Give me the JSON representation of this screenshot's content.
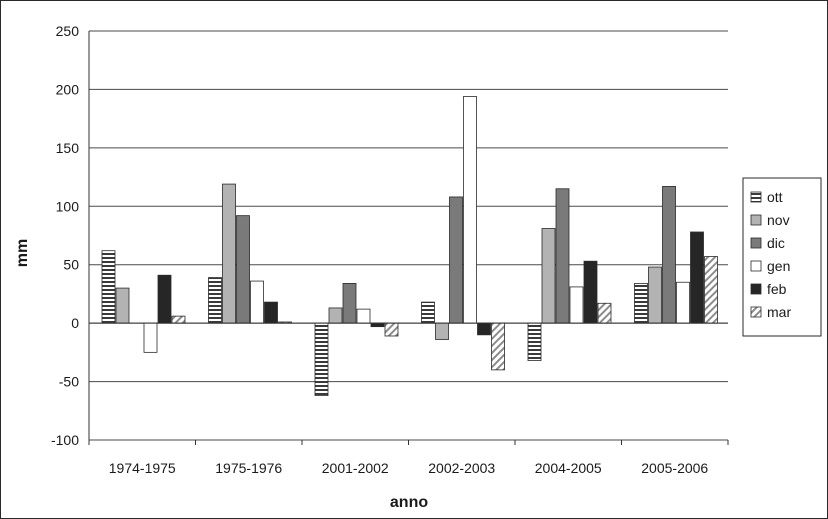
{
  "chart_data": {
    "type": "bar",
    "title": "",
    "xlabel": "anno",
    "ylabel": "mm",
    "ylim": [
      -100,
      250
    ],
    "yticks": [
      250,
      200,
      150,
      100,
      50,
      0,
      -50,
      -100
    ],
    "grid": true,
    "legend_position": "right",
    "categories": [
      "1974-1975",
      "1975-1976",
      "2001-2002",
      "2002-2003",
      "2004-2005",
      "2005-2006"
    ],
    "series": [
      {
        "name": "ott",
        "pattern": "hstripes",
        "values": [
          62,
          39,
          -62,
          18,
          -32,
          34
        ]
      },
      {
        "name": "nov",
        "pattern": "light-gray",
        "values": [
          30,
          119,
          13,
          -14,
          81,
          48
        ]
      },
      {
        "name": "dic",
        "pattern": "mid-gray",
        "values": [
          0,
          92,
          34,
          108,
          115,
          117
        ]
      },
      {
        "name": "gen",
        "pattern": "white",
        "values": [
          -25,
          36,
          12,
          194,
          31,
          35
        ]
      },
      {
        "name": "feb",
        "pattern": "dark",
        "values": [
          41,
          18,
          -3,
          -10,
          53,
          78
        ]
      },
      {
        "name": "mar",
        "pattern": "diagonal",
        "values": [
          6,
          1,
          -11,
          -40,
          17,
          57
        ]
      }
    ],
    "colors": {
      "ott": "#3a3a3a",
      "nov": "#b3b3b3",
      "dic": "#7a7a7a",
      "gen": "#ffffff",
      "feb": "#262626",
      "mar": "#d8d8d8"
    }
  }
}
